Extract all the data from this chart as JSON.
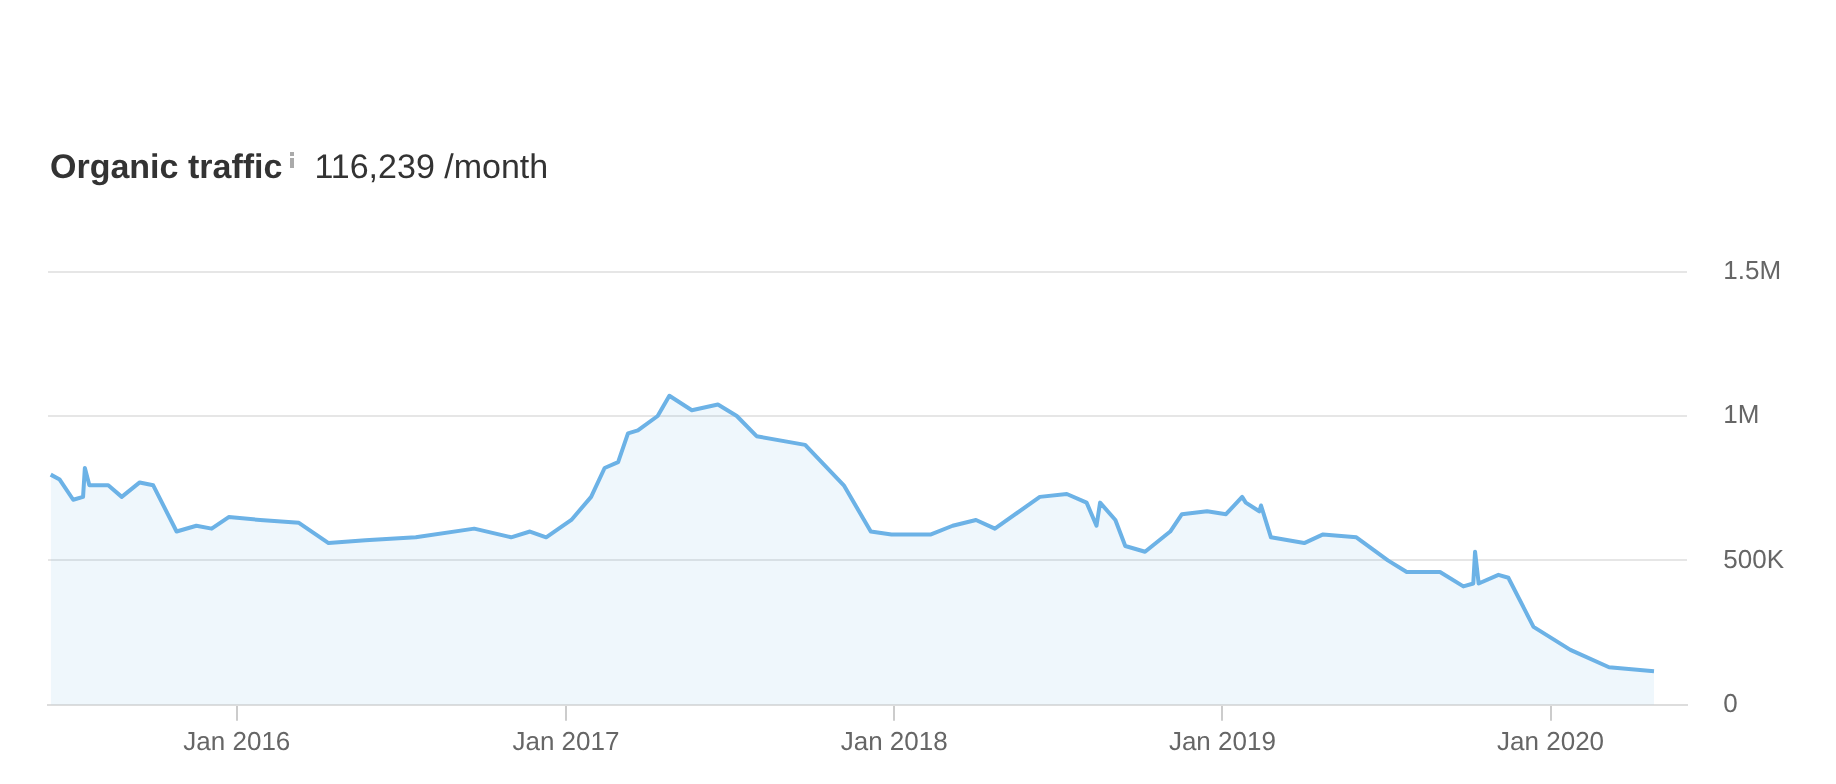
{
  "chart_data": {
    "type": "area",
    "title": "Organic traffic",
    "subtitle": "116,239 /month",
    "x": [
      "2015-06-08",
      "2015-06-18",
      "2015-07-03",
      "2015-07-14",
      "2015-07-16",
      "2015-07-21",
      "2015-08-11",
      "2015-08-26",
      "2015-09-15",
      "2015-09-30",
      "2015-10-26",
      "2015-11-17",
      "2015-12-04",
      "2015-12-23",
      "2016-01-27",
      "2016-03-10",
      "2016-04-12",
      "2016-05-23",
      "2016-07-18",
      "2016-09-21",
      "2016-11-01",
      "2016-11-22",
      "2016-12-10",
      "2017-01-07",
      "2017-01-29",
      "2017-02-13",
      "2017-02-28",
      "2017-03-11",
      "2017-03-22",
      "2017-04-13",
      "2017-04-26",
      "2017-05-21",
      "2017-06-19",
      "2017-07-10",
      "2017-08-01",
      "2017-09-24",
      "2017-11-06",
      "2017-12-06",
      "2017-12-29",
      "2018-02-11",
      "2018-03-07",
      "2018-04-02",
      "2018-04-23",
      "2018-06-12",
      "2018-07-12",
      "2018-08-03",
      "2018-08-14",
      "2018-08-18",
      "2018-09-04",
      "2018-09-15",
      "2018-10-07",
      "2018-11-04",
      "2018-11-17",
      "2018-12-15",
      "2019-01-05",
      "2019-01-23",
      "2019-01-27",
      "2019-02-11",
      "2019-02-13",
      "2019-02-24",
      "2019-04-02",
      "2019-04-23",
      "2019-05-30",
      "2019-07-04",
      "2019-07-25",
      "2019-08-31",
      "2019-09-26",
      "2019-10-07",
      "2019-10-09",
      "2019-10-13",
      "2019-11-04",
      "2019-11-15",
      "2019-12-13",
      "2020-01-23",
      "2020-03-06",
      "2020-04-25"
    ],
    "series": [
      {
        "color": "#6cb2e6",
        "values": [
          797000,
          780000,
          710000,
          720000,
          820000,
          760000,
          760000,
          720000,
          770000,
          760000,
          600000,
          620000,
          610000,
          650000,
          640000,
          630000,
          560000,
          570000,
          580000,
          610000,
          580000,
          600000,
          580000,
          640000,
          720000,
          820000,
          840000,
          940000,
          950000,
          1000000,
          1070000,
          1020000,
          1040000,
          1000000,
          930000,
          900000,
          760000,
          600000,
          590000,
          590000,
          620000,
          640000,
          610000,
          720000,
          730000,
          700000,
          620000,
          700000,
          640000,
          550000,
          530000,
          600000,
          660000,
          670000,
          660000,
          720000,
          700000,
          670000,
          690000,
          580000,
          560000,
          590000,
          580000,
          500000,
          460000,
          460000,
          410000,
          420000,
          530000,
          420000,
          450000,
          440000,
          270000,
          190000,
          130000,
          116239
        ]
      }
    ],
    "xlim": [
      "2015-06-05",
      "2020-06-01"
    ],
    "xticks": [
      {
        "value": "2016-01-01",
        "label": "Jan 2016"
      },
      {
        "value": "2017-01-01",
        "label": "Jan 2017"
      },
      {
        "value": "2018-01-01",
        "label": "Jan 2018"
      },
      {
        "value": "2019-01-01",
        "label": "Jan 2019"
      },
      {
        "value": "2020-01-01",
        "label": "Jan 2020"
      }
    ],
    "ylim": [
      0,
      1500000
    ],
    "yticks": [
      0,
      {
        "value": 500000,
        "label": "500K"
      },
      {
        "value": 1000000,
        "label": "1M"
      },
      {
        "value": 1500000,
        "label": "1.5M"
      }
    ],
    "grid": "y"
  }
}
